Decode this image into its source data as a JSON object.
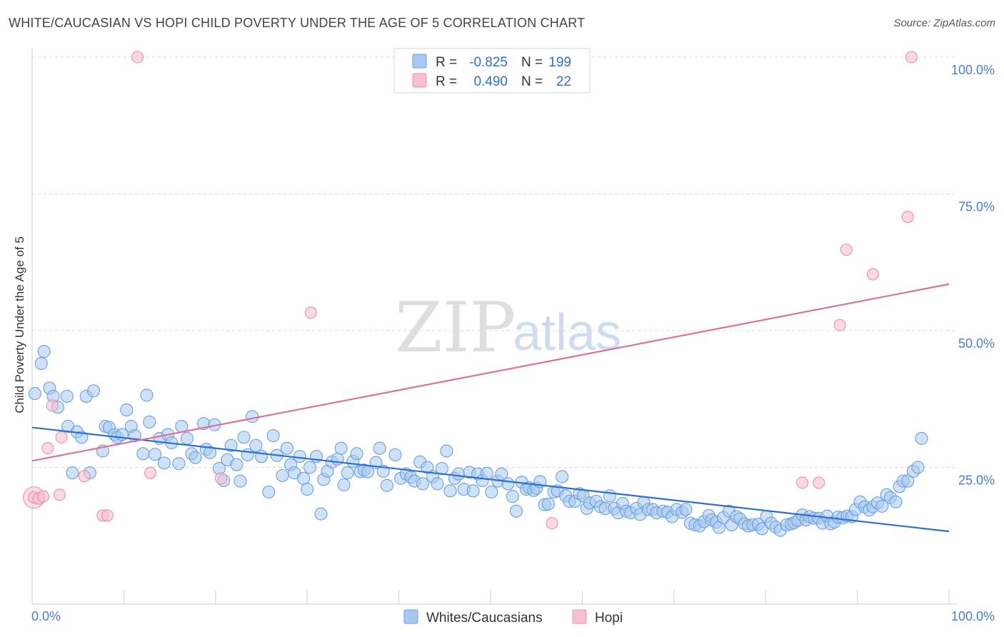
{
  "title": "WHITE/CAUCASIAN VS HOPI CHILD POVERTY UNDER THE AGE OF 5 CORRELATION CHART",
  "source": "Source: ZipAtlas.com",
  "watermark": {
    "zip": "ZIP",
    "atlas": "atlas"
  },
  "colors": {
    "white_fill": "#a8c8f0",
    "white_stroke": "#6a9fdc",
    "white_line": "#2f6fd0",
    "hopi_fill": "#f7bfd0",
    "hopi_stroke": "#e890aa",
    "hopi_line": "#e0709a",
    "grid": "#d8d8d8",
    "tick": "#4a7fc9"
  },
  "legend_top": {
    "rows": [
      {
        "r_label": "R =",
        "r_value": "-0.825",
        "n_label": "N =",
        "n_value": "199"
      },
      {
        "r_label": "R =",
        "r_value": "0.490",
        "n_label": "N =",
        "n_value": "22"
      }
    ]
  },
  "chart_data": {
    "type": "scatter",
    "title": "WHITE/CAUCASIAN VS HOPI CHILD POVERTY UNDER THE AGE OF 5 CORRELATION CHART",
    "xlabel": "",
    "ylabel": "Child Poverty Under the Age of 5",
    "xlim": [
      0,
      100
    ],
    "ylim": [
      0,
      102
    ],
    "x_tick_labels": [
      "0.0%",
      "100.0%"
    ],
    "y_ticks": [
      25,
      50,
      75,
      100
    ],
    "y_tick_labels": [
      "25.0%",
      "50.0%",
      "75.0%",
      "100.0%"
    ],
    "legend": [
      "Whites/Caucasians",
      "Hopi"
    ],
    "series": [
      {
        "name": "Whites/Caucasians",
        "r": -0.825,
        "n": 199,
        "trend": {
          "x0": 0,
          "y0": 32.3,
          "x1": 100,
          "y1": 13.3
        },
        "points": [
          [
            0.3,
            38.5
          ],
          [
            1,
            44
          ],
          [
            1.3,
            46.2
          ],
          [
            1.9,
            39.5
          ],
          [
            2.3,
            38
          ],
          [
            2.8,
            36
          ],
          [
            3.8,
            38
          ],
          [
            3.9,
            32.5
          ],
          [
            4.4,
            24
          ],
          [
            4.9,
            31.5
          ],
          [
            5.4,
            30.5
          ],
          [
            5.9,
            38
          ],
          [
            6.3,
            24
          ],
          [
            6.7,
            39
          ],
          [
            7.7,
            28
          ],
          [
            8,
            32.5
          ],
          [
            8.4,
            32.3
          ],
          [
            9,
            31
          ],
          [
            9.3,
            30.5
          ],
          [
            9.8,
            31
          ],
          [
            10.3,
            35.5
          ],
          [
            10.8,
            32.5
          ],
          [
            11.2,
            30.8
          ],
          [
            12.1,
            27.5
          ],
          [
            12.5,
            38.2
          ],
          [
            12.8,
            33.3
          ],
          [
            13.4,
            27.4
          ],
          [
            13.9,
            30.3
          ],
          [
            14.4,
            25.8
          ],
          [
            14.8,
            31
          ],
          [
            15.2,
            29.5
          ],
          [
            16,
            25.7
          ],
          [
            16.3,
            32.5
          ],
          [
            16.9,
            30.3
          ],
          [
            17.4,
            27.5
          ],
          [
            17.8,
            26.8
          ],
          [
            18.7,
            33
          ],
          [
            19,
            28.3
          ],
          [
            19.4,
            27.7
          ],
          [
            19.9,
            32.8
          ],
          [
            20.4,
            24.8
          ],
          [
            20.9,
            22.6
          ],
          [
            21.3,
            26.4
          ],
          [
            21.7,
            29
          ],
          [
            22.3,
            25.5
          ],
          [
            22.7,
            22.5
          ],
          [
            23.1,
            30.5
          ],
          [
            23.5,
            27.3
          ],
          [
            24,
            34.3
          ],
          [
            24.4,
            29
          ],
          [
            25,
            27
          ],
          [
            25.8,
            20.5
          ],
          [
            26.3,
            30.8
          ],
          [
            26.7,
            27.2
          ],
          [
            27.3,
            23.5
          ],
          [
            27.8,
            28.5
          ],
          [
            28.2,
            25.5
          ],
          [
            28.6,
            24
          ],
          [
            29.2,
            27
          ],
          [
            29.6,
            23
          ],
          [
            30,
            21
          ],
          [
            30.3,
            25
          ],
          [
            31,
            27
          ],
          [
            31.5,
            16.5
          ],
          [
            31.8,
            22.8
          ],
          [
            32.2,
            24.3
          ],
          [
            32.7,
            26
          ],
          [
            33.3,
            26.5
          ],
          [
            33.7,
            28.5
          ],
          [
            34,
            21.8
          ],
          [
            34.4,
            24
          ],
          [
            35,
            26.1
          ],
          [
            35.4,
            27.5
          ],
          [
            35.8,
            24.2
          ],
          [
            36.2,
            24.5
          ],
          [
            36.6,
            24.2
          ],
          [
            37.5,
            25.9
          ],
          [
            37.9,
            28.5
          ],
          [
            38.3,
            24.3
          ],
          [
            38.7,
            21.7
          ],
          [
            39.6,
            27.3
          ],
          [
            40.2,
            23
          ],
          [
            40.8,
            23.8
          ],
          [
            41.3,
            23.2
          ],
          [
            41.7,
            22.5
          ],
          [
            42.3,
            26
          ],
          [
            42.6,
            22
          ],
          [
            43.1,
            25
          ],
          [
            43.7,
            23.3
          ],
          [
            44.2,
            22
          ],
          [
            44.7,
            24.8
          ],
          [
            45.2,
            28
          ],
          [
            45.6,
            20.7
          ],
          [
            46.1,
            23
          ],
          [
            46.5,
            23.8
          ],
          [
            47.1,
            21
          ],
          [
            47.7,
            24.1
          ],
          [
            48.1,
            20.7
          ],
          [
            48.6,
            23.8
          ],
          [
            49.1,
            22.6
          ],
          [
            49.6,
            23.9
          ],
          [
            50.1,
            20.5
          ],
          [
            50.8,
            22.5
          ],
          [
            51.2,
            23.8
          ],
          [
            51.9,
            22
          ],
          [
            52.4,
            19.7
          ],
          [
            52.8,
            17
          ],
          [
            53.4,
            22.3
          ],
          [
            53.9,
            21
          ],
          [
            54.2,
            21.3
          ],
          [
            54.7,
            20.8
          ],
          [
            55,
            21.2
          ],
          [
            55.4,
            22.4
          ],
          [
            55.9,
            18.2
          ],
          [
            56.3,
            18.3
          ],
          [
            56.9,
            20.5
          ],
          [
            57.3,
            20.7
          ],
          [
            57.8,
            23.3
          ],
          [
            58.2,
            19.8
          ],
          [
            58.6,
            18.8
          ],
          [
            59.2,
            18.8
          ],
          [
            59.7,
            20.2
          ],
          [
            60.1,
            19.8
          ],
          [
            60.5,
            17.5
          ],
          [
            60.8,
            18.5
          ],
          [
            61.5,
            18.8
          ],
          [
            62,
            17.8
          ],
          [
            62.5,
            17.5
          ],
          [
            63,
            19.8
          ],
          [
            63.5,
            17.5
          ],
          [
            63.9,
            16.7
          ],
          [
            64.4,
            18.4
          ],
          [
            64.8,
            17
          ],
          [
            65.3,
            16.7
          ],
          [
            65.9,
            17.5
          ],
          [
            66.3,
            16.4
          ],
          [
            66.7,
            18.6
          ],
          [
            67.2,
            17.3
          ],
          [
            67.7,
            17.3
          ],
          [
            68.1,
            16.7
          ],
          [
            68.8,
            17
          ],
          [
            69.3,
            16.8
          ],
          [
            69.8,
            16
          ],
          [
            70.3,
            17.3
          ],
          [
            70.9,
            16.8
          ],
          [
            71.3,
            17.3
          ],
          [
            71.8,
            14.8
          ],
          [
            72.3,
            14.5
          ],
          [
            72.8,
            14.3
          ],
          [
            73.3,
            15.1
          ],
          [
            73.8,
            16.2
          ],
          [
            74.1,
            15.4
          ],
          [
            74.6,
            15
          ],
          [
            74.9,
            14
          ],
          [
            75.4,
            15.8
          ],
          [
            76,
            17
          ],
          [
            76.3,
            14.5
          ],
          [
            76.8,
            16
          ],
          [
            77.2,
            15.6
          ],
          [
            77.7,
            14.7
          ],
          [
            78.1,
            14.3
          ],
          [
            78.6,
            14.5
          ],
          [
            79.2,
            14.6
          ],
          [
            79.6,
            13.8
          ],
          [
            80.1,
            16
          ],
          [
            80.6,
            14.8
          ],
          [
            81.1,
            14.1
          ],
          [
            81.6,
            13.5
          ],
          [
            82.3,
            14.5
          ],
          [
            82.8,
            14.7
          ],
          [
            83.1,
            14.9
          ],
          [
            83.5,
            15.3
          ],
          [
            84,
            16.3
          ],
          [
            84.4,
            15.4
          ],
          [
            84.8,
            16
          ],
          [
            85.3,
            15.7
          ],
          [
            85.8,
            15.7
          ],
          [
            86.2,
            14.8
          ],
          [
            86.7,
            16.1
          ],
          [
            87.1,
            14.7
          ],
          [
            87.5,
            15
          ],
          [
            87.9,
            15.9
          ],
          [
            88.4,
            15.8
          ],
          [
            88.9,
            16.1
          ],
          [
            89.4,
            16
          ],
          [
            89.8,
            17.3
          ],
          [
            90.3,
            18.7
          ],
          [
            90.8,
            17.8
          ],
          [
            91.3,
            17.2
          ],
          [
            91.7,
            17.8
          ],
          [
            92.2,
            18.5
          ],
          [
            92.7,
            17.9
          ],
          [
            93.2,
            20
          ],
          [
            93.6,
            19.5
          ],
          [
            94.2,
            18.7
          ],
          [
            94.6,
            21.5
          ],
          [
            95,
            22.5
          ],
          [
            95.5,
            22.5
          ],
          [
            96.1,
            24.3
          ],
          [
            96.6,
            25
          ],
          [
            97,
            30.3
          ]
        ]
      },
      {
        "name": "Hopi",
        "r": 0.49,
        "n": 22,
        "trend": {
          "x0": 0,
          "y0": 26.2,
          "x1": 100,
          "y1": 58.5
        },
        "points": [
          [
            0.2,
            19.5
          ],
          [
            0.7,
            19.3
          ],
          [
            1.2,
            19.7
          ],
          [
            1.7,
            28.5
          ],
          [
            2.2,
            36.3
          ],
          [
            3,
            20
          ],
          [
            3.2,
            30.5
          ],
          [
            5.7,
            23.4
          ],
          [
            7.7,
            16.2
          ],
          [
            8.2,
            16.2
          ],
          [
            11.5,
            100
          ],
          [
            12.9,
            24
          ],
          [
            20.6,
            23
          ],
          [
            30.4,
            53.3
          ],
          [
            56.7,
            14.8
          ],
          [
            84,
            22.2
          ],
          [
            85.8,
            22.2
          ],
          [
            88.1,
            51
          ],
          [
            88.8,
            64.8
          ],
          [
            91.7,
            60.3
          ],
          [
            95.5,
            70.8
          ],
          [
            95.9,
            100
          ]
        ]
      }
    ]
  }
}
